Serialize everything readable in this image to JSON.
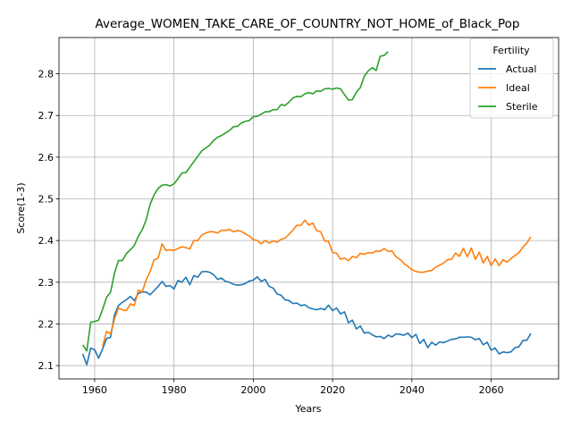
{
  "chart_data": {
    "type": "line",
    "title": "Average_WOMEN_TAKE_CARE_OF_COUNTRY_NOT_HOME_of_Black_Pop",
    "xlabel": "Years",
    "ylabel": "Score(1-3)",
    "xlim": [
      1951,
      2077
    ],
    "ylim": [
      2.068,
      2.887
    ],
    "xticks": [
      1960,
      1980,
      2000,
      2020,
      2040,
      2060
    ],
    "yticks": [
      2.1,
      2.2,
      2.3,
      2.4,
      2.5,
      2.6,
      2.7,
      2.8
    ],
    "grid": true,
    "legend": {
      "title": "Fertility",
      "position": "top-right"
    },
    "series": [
      {
        "name": "Actual",
        "color": "#1f77b4",
        "points": [
          [
            1957,
            2.128
          ],
          [
            1958,
            2.102
          ],
          [
            1959,
            2.142
          ],
          [
            1960,
            2.138
          ],
          [
            1961,
            2.118
          ],
          [
            1962,
            2.14
          ],
          [
            1963,
            2.165
          ],
          [
            1964,
            2.168
          ],
          [
            1965,
            2.222
          ],
          [
            1966,
            2.244
          ],
          [
            1967,
            2.252
          ],
          [
            1968,
            2.258
          ],
          [
            1969,
            2.266
          ],
          [
            1970,
            2.256
          ],
          [
            1971,
            2.273
          ],
          [
            1972,
            2.277
          ],
          [
            1973,
            2.276
          ],
          [
            1974,
            2.27
          ],
          [
            1975,
            2.28
          ],
          [
            1976,
            2.29
          ],
          [
            1977,
            2.302
          ],
          [
            1978,
            2.29
          ],
          [
            1979,
            2.292
          ],
          [
            1980,
            2.284
          ],
          [
            1981,
            2.304
          ],
          [
            1982,
            2.3
          ],
          [
            1983,
            2.312
          ],
          [
            1984,
            2.294
          ],
          [
            1985,
            2.316
          ],
          [
            1986,
            2.312
          ],
          [
            1987,
            2.325
          ],
          [
            1988,
            2.326
          ],
          [
            1989,
            2.324
          ],
          [
            1990,
            2.318
          ],
          [
            1991,
            2.307
          ],
          [
            1992,
            2.31
          ],
          [
            1993,
            2.302
          ],
          [
            1994,
            2.3
          ],
          [
            1995,
            2.295
          ],
          [
            1996,
            2.293
          ],
          [
            1997,
            2.294
          ],
          [
            1998,
            2.297
          ],
          [
            1999,
            2.303
          ],
          [
            2000,
            2.305
          ],
          [
            2001,
            2.313
          ],
          [
            2002,
            2.302
          ],
          [
            2003,
            2.307
          ],
          [
            2004,
            2.29
          ],
          [
            2005,
            2.286
          ],
          [
            2006,
            2.272
          ],
          [
            2007,
            2.269
          ],
          [
            2008,
            2.258
          ],
          [
            2009,
            2.256
          ],
          [
            2010,
            2.249
          ],
          [
            2011,
            2.25
          ],
          [
            2012,
            2.244
          ],
          [
            2013,
            2.246
          ],
          [
            2014,
            2.239
          ],
          [
            2015,
            2.236
          ],
          [
            2016,
            2.234
          ],
          [
            2017,
            2.237
          ],
          [
            2018,
            2.234
          ],
          [
            2019,
            2.245
          ],
          [
            2020,
            2.232
          ],
          [
            2021,
            2.238
          ],
          [
            2022,
            2.224
          ],
          [
            2023,
            2.229
          ],
          [
            2024,
            2.203
          ],
          [
            2025,
            2.209
          ],
          [
            2026,
            2.188
          ],
          [
            2027,
            2.195
          ],
          [
            2028,
            2.178
          ],
          [
            2029,
            2.18
          ],
          [
            2030,
            2.174
          ],
          [
            2031,
            2.169
          ],
          [
            2032,
            2.17
          ],
          [
            2033,
            2.165
          ],
          [
            2034,
            2.173
          ],
          [
            2035,
            2.169
          ],
          [
            2036,
            2.176
          ],
          [
            2037,
            2.175
          ],
          [
            2038,
            2.173
          ],
          [
            2039,
            2.178
          ],
          [
            2040,
            2.167
          ],
          [
            2041,
            2.175
          ],
          [
            2042,
            2.153
          ],
          [
            2043,
            2.163
          ],
          [
            2044,
            2.143
          ],
          [
            2045,
            2.156
          ],
          [
            2046,
            2.149
          ],
          [
            2047,
            2.157
          ],
          [
            2048,
            2.155
          ],
          [
            2049,
            2.159
          ],
          [
            2050,
            2.163
          ],
          [
            2051,
            2.164
          ],
          [
            2052,
            2.168
          ],
          [
            2053,
            2.168
          ],
          [
            2054,
            2.169
          ],
          [
            2055,
            2.168
          ],
          [
            2056,
            2.162
          ],
          [
            2057,
            2.165
          ],
          [
            2058,
            2.15
          ],
          [
            2059,
            2.156
          ],
          [
            2060,
            2.137
          ],
          [
            2061,
            2.142
          ],
          [
            2062,
            2.128
          ],
          [
            2063,
            2.133
          ],
          [
            2064,
            2.131
          ],
          [
            2065,
            2.133
          ],
          [
            2066,
            2.143
          ],
          [
            2067,
            2.145
          ],
          [
            2068,
            2.16
          ],
          [
            2069,
            2.161
          ],
          [
            2070,
            2.177
          ]
        ]
      },
      {
        "name": "Ideal",
        "color": "#ff7f0e",
        "points": [
          [
            1962,
            2.146
          ],
          [
            1963,
            2.182
          ],
          [
            1964,
            2.176
          ],
          [
            1965,
            2.212
          ],
          [
            1966,
            2.238
          ],
          [
            1967,
            2.234
          ],
          [
            1968,
            2.232
          ],
          [
            1969,
            2.248
          ],
          [
            1970,
            2.244
          ],
          [
            1971,
            2.281
          ],
          [
            1972,
            2.277
          ],
          [
            1973,
            2.306
          ],
          [
            1974,
            2.326
          ],
          [
            1975,
            2.354
          ],
          [
            1976,
            2.358
          ],
          [
            1977,
            2.392
          ],
          [
            1978,
            2.376
          ],
          [
            1979,
            2.378
          ],
          [
            1980,
            2.376
          ],
          [
            1981,
            2.381
          ],
          [
            1982,
            2.385
          ],
          [
            1983,
            2.383
          ],
          [
            1984,
            2.38
          ],
          [
            1985,
            2.4
          ],
          [
            1986,
            2.4
          ],
          [
            1987,
            2.413
          ],
          [
            1988,
            2.418
          ],
          [
            1989,
            2.421
          ],
          [
            1990,
            2.421
          ],
          [
            1991,
            2.418
          ],
          [
            1992,
            2.425
          ],
          [
            1993,
            2.424
          ],
          [
            1994,
            2.427
          ],
          [
            1995,
            2.421
          ],
          [
            1996,
            2.424
          ],
          [
            1997,
            2.422
          ],
          [
            1998,
            2.416
          ],
          [
            1999,
            2.411
          ],
          [
            2000,
            2.402
          ],
          [
            2001,
            2.4
          ],
          [
            2002,
            2.392
          ],
          [
            2003,
            2.4
          ],
          [
            2004,
            2.394
          ],
          [
            2005,
            2.399
          ],
          [
            2006,
            2.396
          ],
          [
            2007,
            2.403
          ],
          [
            2008,
            2.406
          ],
          [
            2009,
            2.415
          ],
          [
            2010,
            2.425
          ],
          [
            2011,
            2.437
          ],
          [
            2012,
            2.436
          ],
          [
            2013,
            2.449
          ],
          [
            2014,
            2.437
          ],
          [
            2015,
            2.442
          ],
          [
            2016,
            2.424
          ],
          [
            2017,
            2.421
          ],
          [
            2018,
            2.399
          ],
          [
            2019,
            2.398
          ],
          [
            2020,
            2.371
          ],
          [
            2021,
            2.37
          ],
          [
            2022,
            2.355
          ],
          [
            2023,
            2.358
          ],
          [
            2024,
            2.352
          ],
          [
            2025,
            2.362
          ],
          [
            2026,
            2.359
          ],
          [
            2027,
            2.369
          ],
          [
            2028,
            2.367
          ],
          [
            2029,
            2.371
          ],
          [
            2030,
            2.37
          ],
          [
            2031,
            2.375
          ],
          [
            2032,
            2.374
          ],
          [
            2033,
            2.381
          ],
          [
            2034,
            2.374
          ],
          [
            2035,
            2.375
          ],
          [
            2036,
            2.361
          ],
          [
            2037,
            2.355
          ],
          [
            2038,
            2.345
          ],
          [
            2039,
            2.338
          ],
          [
            2040,
            2.33
          ],
          [
            2041,
            2.326
          ],
          [
            2042,
            2.324
          ],
          [
            2043,
            2.324
          ],
          [
            2044,
            2.327
          ],
          [
            2045,
            2.328
          ],
          [
            2046,
            2.336
          ],
          [
            2047,
            2.341
          ],
          [
            2048,
            2.346
          ],
          [
            2049,
            2.354
          ],
          [
            2050,
            2.355
          ],
          [
            2051,
            2.37
          ],
          [
            2052,
            2.362
          ],
          [
            2053,
            2.381
          ],
          [
            2054,
            2.361
          ],
          [
            2055,
            2.382
          ],
          [
            2056,
            2.355
          ],
          [
            2057,
            2.372
          ],
          [
            2058,
            2.346
          ],
          [
            2059,
            2.362
          ],
          [
            2060,
            2.34
          ],
          [
            2061,
            2.356
          ],
          [
            2062,
            2.34
          ],
          [
            2063,
            2.354
          ],
          [
            2064,
            2.348
          ],
          [
            2065,
            2.357
          ],
          [
            2066,
            2.364
          ],
          [
            2067,
            2.371
          ],
          [
            2068,
            2.384
          ],
          [
            2069,
            2.394
          ],
          [
            2070,
            2.409
          ]
        ]
      },
      {
        "name": "Sterile",
        "color": "#2ca02c",
        "points": [
          [
            1957,
            2.15
          ],
          [
            1958,
            2.135
          ],
          [
            1959,
            2.204
          ],
          [
            1960,
            2.206
          ],
          [
            1961,
            2.209
          ],
          [
            1962,
            2.235
          ],
          [
            1963,
            2.264
          ],
          [
            1964,
            2.276
          ],
          [
            1965,
            2.322
          ],
          [
            1966,
            2.352
          ],
          [
            1967,
            2.352
          ],
          [
            1968,
            2.369
          ],
          [
            1969,
            2.378
          ],
          [
            1970,
            2.388
          ],
          [
            1971,
            2.41
          ],
          [
            1972,
            2.426
          ],
          [
            1973,
            2.45
          ],
          [
            1974,
            2.487
          ],
          [
            1975,
            2.51
          ],
          [
            1976,
            2.525
          ],
          [
            1977,
            2.533
          ],
          [
            1978,
            2.534
          ],
          [
            1979,
            2.531
          ],
          [
            1980,
            2.536
          ],
          [
            1981,
            2.548
          ],
          [
            1982,
            2.562
          ],
          [
            1983,
            2.563
          ],
          [
            1984,
            2.576
          ],
          [
            1985,
            2.589
          ],
          [
            1986,
            2.602
          ],
          [
            1987,
            2.615
          ],
          [
            1988,
            2.622
          ],
          [
            1989,
            2.629
          ],
          [
            1990,
            2.64
          ],
          [
            1991,
            2.648
          ],
          [
            1992,
            2.652
          ],
          [
            1993,
            2.658
          ],
          [
            1994,
            2.664
          ],
          [
            1995,
            2.673
          ],
          [
            1996,
            2.674
          ],
          [
            1997,
            2.682
          ],
          [
            1998,
            2.686
          ],
          [
            1999,
            2.688
          ],
          [
            2000,
            2.697
          ],
          [
            2001,
            2.698
          ],
          [
            2002,
            2.703
          ],
          [
            2003,
            2.709
          ],
          [
            2004,
            2.709
          ],
          [
            2005,
            2.714
          ],
          [
            2006,
            2.714
          ],
          [
            2007,
            2.726
          ],
          [
            2008,
            2.724
          ],
          [
            2009,
            2.732
          ],
          [
            2010,
            2.742
          ],
          [
            2011,
            2.746
          ],
          [
            2012,
            2.745
          ],
          [
            2013,
            2.752
          ],
          [
            2014,
            2.755
          ],
          [
            2015,
            2.752
          ],
          [
            2016,
            2.759
          ],
          [
            2017,
            2.758
          ],
          [
            2018,
            2.764
          ],
          [
            2019,
            2.765
          ],
          [
            2020,
            2.763
          ],
          [
            2021,
            2.766
          ],
          [
            2022,
            2.764
          ],
          [
            2023,
            2.75
          ],
          [
            2024,
            2.737
          ],
          [
            2025,
            2.738
          ],
          [
            2026,
            2.756
          ],
          [
            2027,
            2.767
          ],
          [
            2028,
            2.794
          ],
          [
            2029,
            2.807
          ],
          [
            2030,
            2.815
          ],
          [
            2031,
            2.808
          ],
          [
            2032,
            2.842
          ],
          [
            2033,
            2.844
          ],
          [
            2034,
            2.853
          ]
        ]
      }
    ]
  }
}
